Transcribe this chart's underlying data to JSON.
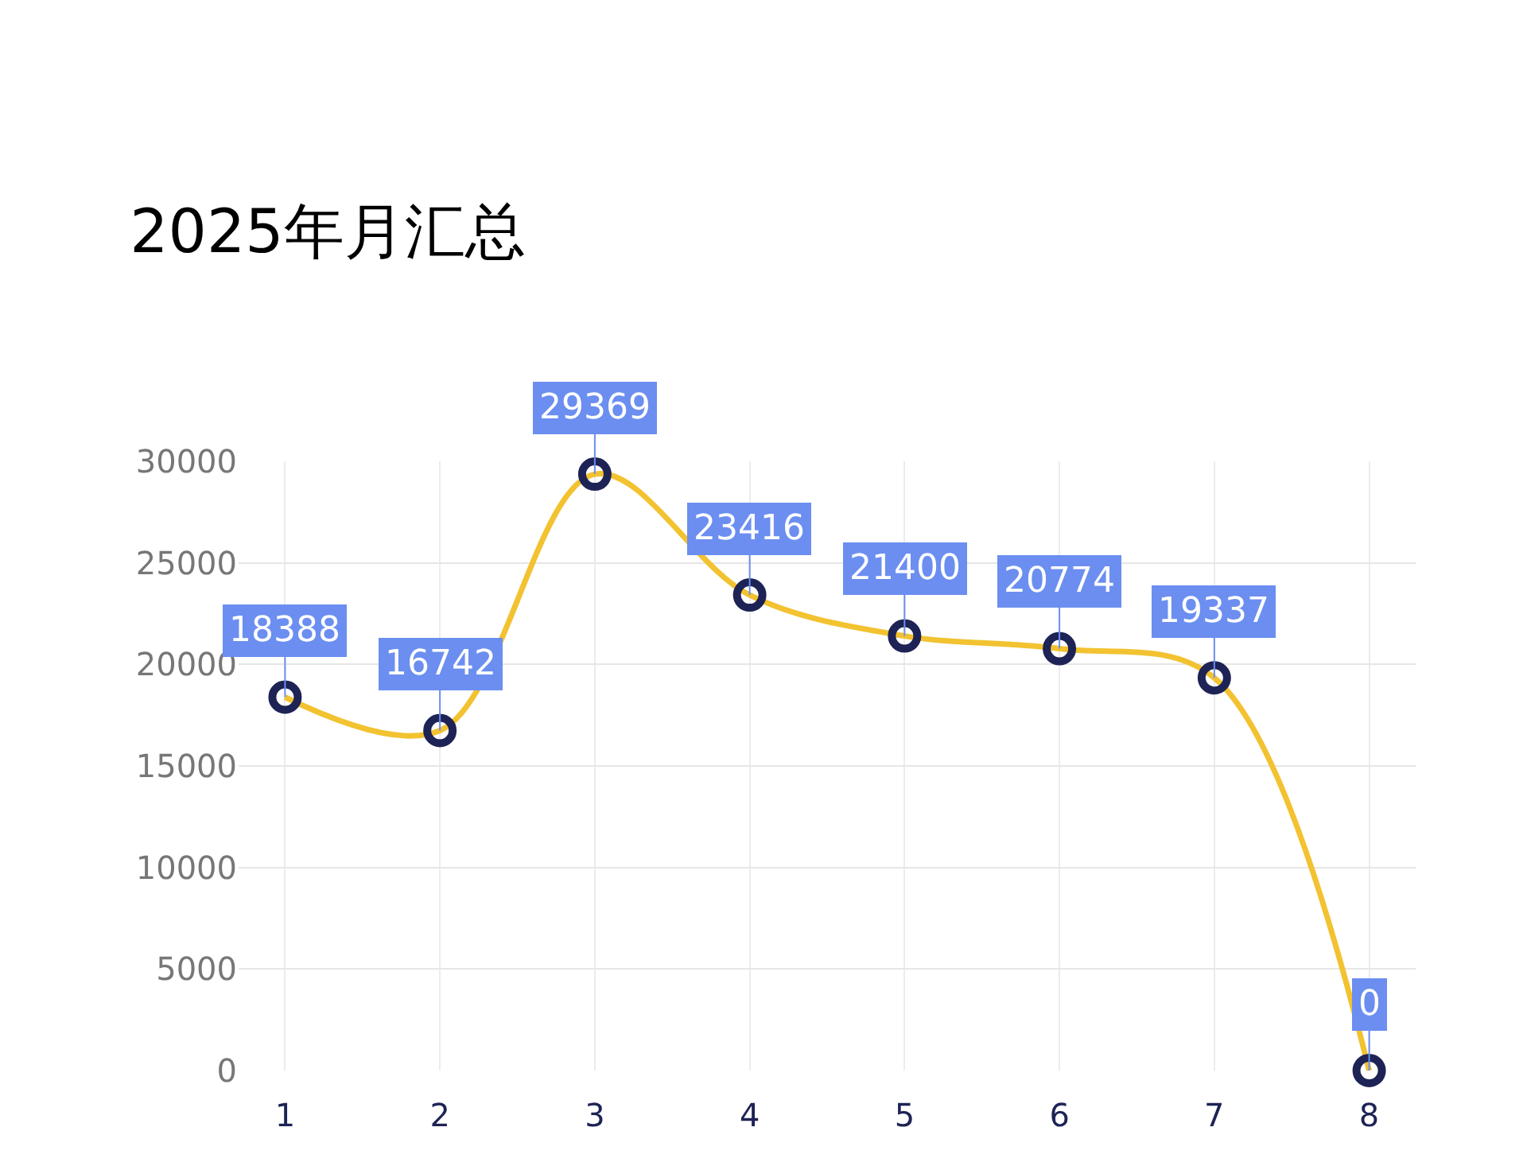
{
  "chart_data": {
    "type": "line",
    "title": "2025年月汇总",
    "categories": [
      "1",
      "2",
      "3",
      "4",
      "5",
      "6",
      "7",
      "8"
    ],
    "series": [
      {
        "color": "#f2c230",
        "values": [
          18388,
          16742,
          29369,
          23416,
          21400,
          20774,
          19337,
          0
        ]
      }
    ],
    "ylim": [
      0,
      30000
    ],
    "yticks": [
      0,
      5000,
      10000,
      15000,
      20000,
      25000,
      30000
    ],
    "grid": true,
    "marker": "circle",
    "line_style": "solid",
    "data_labels": true
  }
}
